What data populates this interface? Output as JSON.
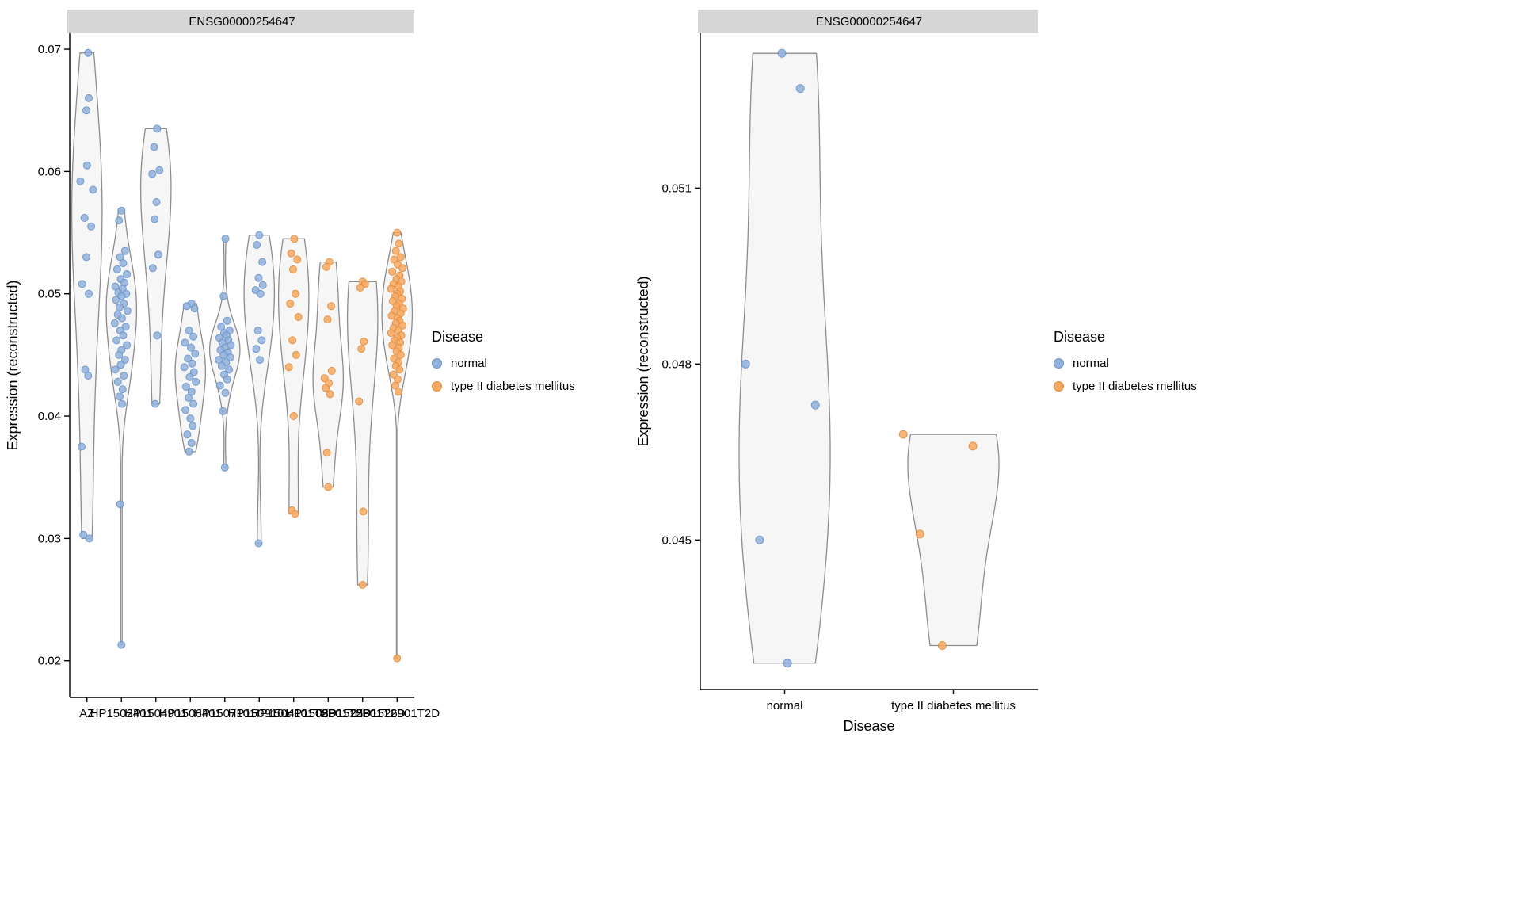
{
  "colors": {
    "normal": "#8FB1DC",
    "normal_stroke": "#6B94C6",
    "t2d": "#F8A860",
    "t2d_stroke": "#DE8E3E",
    "violin_fill": "#F6F6F6",
    "violin_stroke": "#8C8C8C",
    "strip_fill": "#D6D6D6",
    "axis": "#000000"
  },
  "legend": {
    "title": "Disease",
    "entries": [
      {
        "label": "normal",
        "key": "normal"
      },
      {
        "label": "type II diabetes mellitus",
        "key": "t2d"
      }
    ]
  },
  "chart_data": [
    {
      "type": "violin",
      "panel": "by-sample",
      "title": "ENSG00000254647",
      "ylabel": "Expression (reconstructed)",
      "xlabel": "",
      "grid": false,
      "legend_position": "right",
      "yticks": [
        [
          0.02,
          "0.02"
        ],
        [
          0.03,
          "0.03"
        ],
        [
          0.04,
          "0.04"
        ],
        [
          0.05,
          "0.05"
        ],
        [
          0.06,
          "0.06"
        ],
        [
          0.07,
          "0.07"
        ]
      ],
      "ylim": [
        0.017,
        0.0713
      ],
      "groups": [
        {
          "category": "AZ",
          "disease": "normal",
          "points": [
            [
              0.1,
              0.0697
            ],
            [
              0.15,
              0.066
            ],
            [
              -0.05,
              0.065
            ],
            [
              0.0,
              0.0605
            ],
            [
              -0.55,
              0.0592
            ],
            [
              0.5,
              0.0585
            ],
            [
              -0.2,
              0.0562
            ],
            [
              0.35,
              0.0555
            ],
            [
              -0.05,
              0.053
            ],
            [
              -0.4,
              0.0508
            ],
            [
              0.15,
              0.05
            ],
            [
              -0.15,
              0.0438
            ],
            [
              0.1,
              0.0433
            ],
            [
              -0.45,
              0.0375
            ],
            [
              -0.3,
              0.0303
            ],
            [
              0.2,
              0.03
            ]
          ]
        },
        {
          "category": "HP1502401",
          "disease": "normal",
          "points": [
            [
              0.0,
              0.0568
            ],
            [
              -0.2,
              0.056
            ],
            [
              0.3,
              0.0535
            ],
            [
              -0.1,
              0.053
            ],
            [
              0.15,
              0.0525
            ],
            [
              -0.35,
              0.052
            ],
            [
              0.45,
              0.0516
            ],
            [
              -0.05,
              0.0512
            ],
            [
              0.25,
              0.0509
            ],
            [
              -0.5,
              0.0506
            ],
            [
              0.1,
              0.0504
            ],
            [
              -0.25,
              0.0501
            ],
            [
              0.4,
              0.05
            ],
            [
              0.0,
              0.0498
            ],
            [
              -0.45,
              0.0495
            ],
            [
              0.2,
              0.0492
            ],
            [
              -0.15,
              0.0489
            ],
            [
              0.5,
              0.0486
            ],
            [
              -0.3,
              0.0483
            ],
            [
              0.05,
              0.048
            ],
            [
              -0.55,
              0.0476
            ],
            [
              0.35,
              0.0473
            ],
            [
              -0.1,
              0.047
            ],
            [
              0.15,
              0.0466
            ],
            [
              -0.4,
              0.0462
            ],
            [
              0.45,
              0.0458
            ],
            [
              0.0,
              0.0454
            ],
            [
              -0.2,
              0.045
            ],
            [
              0.3,
              0.0446
            ],
            [
              -0.05,
              0.0442
            ],
            [
              -0.5,
              0.0438
            ],
            [
              0.2,
              0.0433
            ],
            [
              -0.3,
              0.0428
            ],
            [
              0.1,
              0.0422
            ],
            [
              -0.15,
              0.0416
            ],
            [
              0.05,
              0.041
            ],
            [
              -0.1,
              0.0328
            ],
            [
              0.0,
              0.0213
            ]
          ]
        },
        {
          "category": "HP1504901",
          "disease": "normal",
          "points": [
            [
              0.1,
              0.0635
            ],
            [
              -0.15,
              0.062
            ],
            [
              0.3,
              0.0601
            ],
            [
              -0.3,
              0.0598
            ],
            [
              0.05,
              0.0575
            ],
            [
              -0.1,
              0.0561
            ],
            [
              0.2,
              0.0532
            ],
            [
              -0.25,
              0.0521
            ],
            [
              0.1,
              0.0466
            ],
            [
              -0.05,
              0.041
            ]
          ]
        },
        {
          "category": "HP1506401",
          "disease": "normal",
          "points": [
            [
              0.1,
              0.0492
            ],
            [
              -0.3,
              0.049
            ],
            [
              0.35,
              0.0488
            ],
            [
              -0.1,
              0.047
            ],
            [
              0.25,
              0.0465
            ],
            [
              -0.45,
              0.046
            ],
            [
              0.05,
              0.0456
            ],
            [
              0.4,
              0.0451
            ],
            [
              -0.2,
              0.0447
            ],
            [
              0.15,
              0.0443
            ],
            [
              -0.5,
              0.044
            ],
            [
              0.3,
              0.0436
            ],
            [
              -0.05,
              0.0432
            ],
            [
              0.45,
              0.0428
            ],
            [
              -0.35,
              0.0424
            ],
            [
              0.1,
              0.042
            ],
            [
              -0.15,
              0.0415
            ],
            [
              0.25,
              0.041
            ],
            [
              -0.4,
              0.0405
            ],
            [
              0.0,
              0.0398
            ],
            [
              0.2,
              0.0392
            ],
            [
              -0.25,
              0.0385
            ],
            [
              0.1,
              0.0378
            ],
            [
              -0.1,
              0.0371
            ]
          ]
        },
        {
          "category": "HP1507101",
          "disease": "normal",
          "points": [
            [
              0.05,
              0.0545
            ],
            [
              -0.1,
              0.0498
            ],
            [
              0.2,
              0.0478
            ],
            [
              -0.3,
              0.0473
            ],
            [
              0.4,
              0.047
            ],
            [
              -0.05,
              0.0468
            ],
            [
              0.15,
              0.0466
            ],
            [
              -0.45,
              0.0464
            ],
            [
              0.3,
              0.0462
            ],
            [
              -0.2,
              0.046
            ],
            [
              0.5,
              0.0458
            ],
            [
              0.0,
              0.0456
            ],
            [
              -0.35,
              0.0454
            ],
            [
              0.25,
              0.0452
            ],
            [
              -0.1,
              0.045
            ],
            [
              0.45,
              0.0448
            ],
            [
              -0.5,
              0.0446
            ],
            [
              0.1,
              0.0444
            ],
            [
              -0.25,
              0.0441
            ],
            [
              0.35,
              0.0438
            ],
            [
              -0.05,
              0.0434
            ],
            [
              0.2,
              0.043
            ],
            [
              -0.4,
              0.0425
            ],
            [
              0.05,
              0.0419
            ],
            [
              -0.15,
              0.0404
            ],
            [
              0.0,
              0.0358
            ]
          ]
        },
        {
          "category": "HP1509101",
          "disease": "normal",
          "points": [
            [
              0.0,
              0.0548
            ],
            [
              -0.2,
              0.054
            ],
            [
              0.25,
              0.0526
            ],
            [
              -0.05,
              0.0513
            ],
            [
              0.3,
              0.0507
            ],
            [
              -0.3,
              0.0503
            ],
            [
              0.1,
              0.05
            ],
            [
              -0.1,
              0.047
            ],
            [
              0.2,
              0.0462
            ],
            [
              -0.25,
              0.0455
            ],
            [
              0.05,
              0.0446
            ],
            [
              -0.05,
              0.0296
            ]
          ]
        },
        {
          "category": "HP1504101T2D",
          "disease": "t2d",
          "points": [
            [
              0.05,
              0.0545
            ],
            [
              -0.2,
              0.0533
            ],
            [
              0.3,
              0.0528
            ],
            [
              -0.05,
              0.052
            ],
            [
              0.15,
              0.05
            ],
            [
              -0.3,
              0.0492
            ],
            [
              0.4,
              0.0481
            ],
            [
              -0.1,
              0.0462
            ],
            [
              0.2,
              0.045
            ],
            [
              -0.4,
              0.044
            ],
            [
              0.0,
              0.04
            ],
            [
              -0.15,
              0.0323
            ],
            [
              0.1,
              0.032
            ]
          ]
        },
        {
          "category": "HP1508501T2D",
          "disease": "t2d",
          "points": [
            [
              0.1,
              0.0526
            ],
            [
              -0.15,
              0.0522
            ],
            [
              0.25,
              0.049
            ],
            [
              -0.05,
              0.0479
            ],
            [
              0.3,
              0.0437
            ],
            [
              -0.3,
              0.0431
            ],
            [
              0.05,
              0.0427
            ],
            [
              -0.2,
              0.0423
            ],
            [
              0.15,
              0.0418
            ],
            [
              -0.1,
              0.037
            ],
            [
              0.0,
              0.0342
            ]
          ]
        },
        {
          "category": "HP1525301T2D",
          "disease": "t2d",
          "points": [
            [
              0.0,
              0.051
            ],
            [
              0.2,
              0.0508
            ],
            [
              -0.2,
              0.0505
            ],
            [
              0.1,
              0.0461
            ],
            [
              -0.1,
              0.0455
            ],
            [
              -0.3,
              0.0412
            ],
            [
              0.05,
              0.0322
            ],
            [
              0.0,
              0.0262
            ]
          ]
        },
        {
          "category": "HP1526901T2D",
          "disease": "t2d",
          "points": [
            [
              0.0,
              0.055
            ],
            [
              0.15,
              0.0541
            ],
            [
              -0.1,
              0.0535
            ],
            [
              0.3,
              0.053
            ],
            [
              -0.25,
              0.0528
            ],
            [
              0.05,
              0.0524
            ],
            [
              0.45,
              0.0521
            ],
            [
              -0.4,
              0.0518
            ],
            [
              0.2,
              0.0515
            ],
            [
              -0.05,
              0.0512
            ],
            [
              0.35,
              0.051
            ],
            [
              -0.3,
              0.0508
            ],
            [
              0.1,
              0.0506
            ],
            [
              -0.5,
              0.0504
            ],
            [
              0.25,
              0.0502
            ],
            [
              0.0,
              0.05
            ],
            [
              -0.15,
              0.0498
            ],
            [
              0.4,
              0.0496
            ],
            [
              -0.35,
              0.0494
            ],
            [
              0.15,
              0.0492
            ],
            [
              -0.05,
              0.049
            ],
            [
              0.5,
              0.0488
            ],
            [
              -0.2,
              0.0486
            ],
            [
              0.3,
              0.0484
            ],
            [
              -0.45,
              0.0482
            ],
            [
              0.05,
              0.048
            ],
            [
              0.2,
              0.0478
            ],
            [
              -0.1,
              0.0476
            ],
            [
              0.45,
              0.0474
            ],
            [
              -0.3,
              0.0472
            ],
            [
              0.1,
              0.047
            ],
            [
              -0.5,
              0.0468
            ],
            [
              0.35,
              0.0466
            ],
            [
              0.0,
              0.0464
            ],
            [
              -0.2,
              0.0462
            ],
            [
              0.25,
              0.046
            ],
            [
              -0.4,
              0.0458
            ],
            [
              0.15,
              0.0456
            ],
            [
              -0.05,
              0.0453
            ],
            [
              0.3,
              0.045
            ],
            [
              -0.25,
              0.0447
            ],
            [
              0.1,
              0.0444
            ],
            [
              -0.1,
              0.0441
            ],
            [
              0.2,
              0.0438
            ],
            [
              -0.3,
              0.0434
            ],
            [
              0.05,
              0.043
            ],
            [
              -0.15,
              0.0425
            ],
            [
              0.1,
              0.042
            ],
            [
              0.0,
              0.0202
            ]
          ]
        }
      ]
    },
    {
      "type": "violin",
      "panel": "by-disease",
      "title": "ENSG00000254647",
      "ylabel": "Expression (reconstructed)",
      "xlabel": "Disease",
      "grid": false,
      "legend_position": "right",
      "yticks": [
        [
          0.045,
          "0.045"
        ],
        [
          0.048,
          "0.048"
        ],
        [
          0.051,
          "0.051"
        ]
      ],
      "ylim": [
        0.04245,
        0.05364
      ],
      "groups": [
        {
          "category": "normal",
          "disease": "normal",
          "points": [
            [
              -0.05,
              0.0533
            ],
            [
              0.28,
              0.0527
            ],
            [
              -0.7,
              0.048
            ],
            [
              0.55,
              0.0473
            ],
            [
              -0.45,
              0.045
            ],
            [
              0.05,
              0.0429
            ]
          ]
        },
        {
          "category": "type II diabetes mellitus",
          "disease": "t2d",
          "points": [
            [
              -0.9,
              0.0468
            ],
            [
              0.35,
              0.0466
            ],
            [
              -0.6,
              0.0451
            ],
            [
              -0.2,
              0.0432
            ]
          ]
        }
      ]
    }
  ]
}
